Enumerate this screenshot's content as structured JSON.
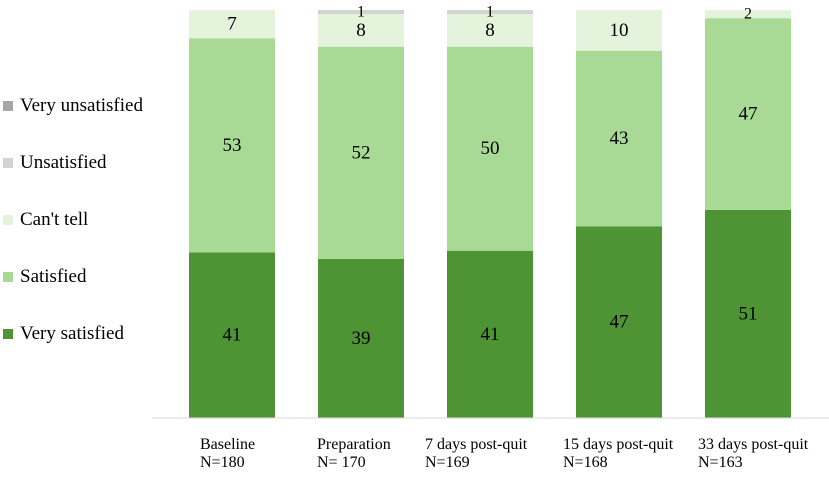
{
  "chart_data": {
    "type": "bar",
    "stacked": true,
    "normalized": true,
    "categories": [
      "Baseline",
      "Preparation",
      "7 days post-quit",
      "15 days post-quit",
      "33 days post-quit"
    ],
    "category_sublabels": [
      "N=180",
      "N= 170",
      "N=169",
      "N=168",
      "N=163"
    ],
    "series": [
      {
        "name": "Very satisfied",
        "color": "#4e9435",
        "values": [
          41,
          39,
          41,
          47,
          51
        ]
      },
      {
        "name": "Satisfied",
        "color": "#a8da96",
        "values": [
          53,
          52,
          50,
          43,
          47
        ]
      },
      {
        "name": "Can't tell",
        "color": "#e3f3dc",
        "values": [
          7,
          8,
          8,
          10,
          2
        ]
      },
      {
        "name": "Unsatisfied",
        "color": "#d3d3d3",
        "values": [
          0,
          1,
          1,
          0,
          0
        ]
      },
      {
        "name": "Very unsatisfied",
        "color": "#a6a6a6",
        "values": [
          0,
          0,
          0,
          0,
          0
        ]
      }
    ],
    "data_labels": [
      [
        "41",
        "39",
        "41",
        "47",
        "51"
      ],
      [
        "53",
        "52",
        "50",
        "43",
        "47"
      ],
      [
        "7",
        "8",
        "8",
        "10",
        "2"
      ],
      [
        "",
        "1",
        "1",
        "",
        ""
      ],
      [
        "",
        "",
        "",
        "",
        ""
      ]
    ],
    "legend_order": [
      "Very unsatisfied",
      "Unsatisfied",
      "Can't tell",
      "Satisfied",
      "Very satisfied"
    ],
    "legend_position": "left",
    "grid": false
  }
}
